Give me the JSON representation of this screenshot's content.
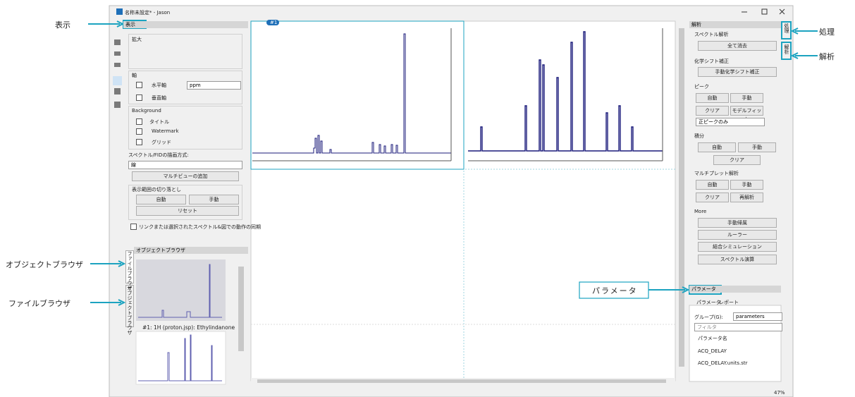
{
  "window_title": "名称未設定* - Jason",
  "callouts": {
    "display": "表示",
    "processing": "処理",
    "analysis": "解析",
    "object_browser": "オブジェクトブラウザ",
    "file_browser": "ファイルブラウザ",
    "parameters": "パラメータ"
  },
  "display_panel": {
    "title": "表示",
    "zoom": "拡大",
    "axes": "軸",
    "horizontal_axis": "水平軸",
    "unit": "ppm",
    "vertical_axis": "垂直軸",
    "background": "Background",
    "title_item": "タイトル",
    "watermark": "Watermark",
    "grid": "グリッド",
    "draw_mode_label": "スペクトル/FIDの描画方式:",
    "draw_mode": "線",
    "add_multiview": "マルチビューの追加",
    "crop_label": "表示範囲の切り落とし",
    "crop_auto": "自動",
    "crop_manual": "手動",
    "crop_reset": "リセット",
    "sync": "リンクまたは選択されたスペクトル&図での動作の同期"
  },
  "object_browser": {
    "title": "オブジェクトブラウザ",
    "tab_file": "ファイルブラウザ",
    "tab_object": "オブジェクトブラウザ",
    "item": "#1: 1H (proton.jsp): Ethylindanone"
  },
  "view": {
    "tab": "#1"
  },
  "analysis_panel": {
    "title": "解析",
    "spectrum_analysis": "スペクトル解析",
    "clear_all": "全て消去",
    "shift_correction": "化学シフト補正",
    "manual_shift": "手動化学シフト補正",
    "peaks": "ピーク",
    "peak_auto": "自動",
    "peak_manual": "手動",
    "peak_clear": "クリア",
    "model_fit": "モデルフィット",
    "positive_only": "正ピークのみ",
    "integral": "積分",
    "int_auto": "自動",
    "int_manual": "手動",
    "int_clear": "クリア",
    "multiplet": "マルチプレット解析",
    "mul_auto": "自動",
    "mul_manual": "手動",
    "mul_clear": "クリア",
    "reanalyze": "再解析",
    "more": "More",
    "manual_assign": "手動帰属",
    "ruler": "ルーラー",
    "coupling_sim": "結合シミュレーション",
    "spectrum_math": "スペクトル演算"
  },
  "right_tabs": {
    "processing": "処理",
    "analysis": "解析"
  },
  "parameters_panel": {
    "title": "パラメータ",
    "tab_params": "パラメータ",
    "tab_report": "レポート",
    "group_label": "グループ(G):",
    "group": "parameters",
    "filter": "フィルタ",
    "column": "パラメータ名",
    "rows": [
      "ACQ_DELAY",
      "ACQ_DELAY.units.str"
    ]
  },
  "status": {
    "zoom": "47%"
  }
}
